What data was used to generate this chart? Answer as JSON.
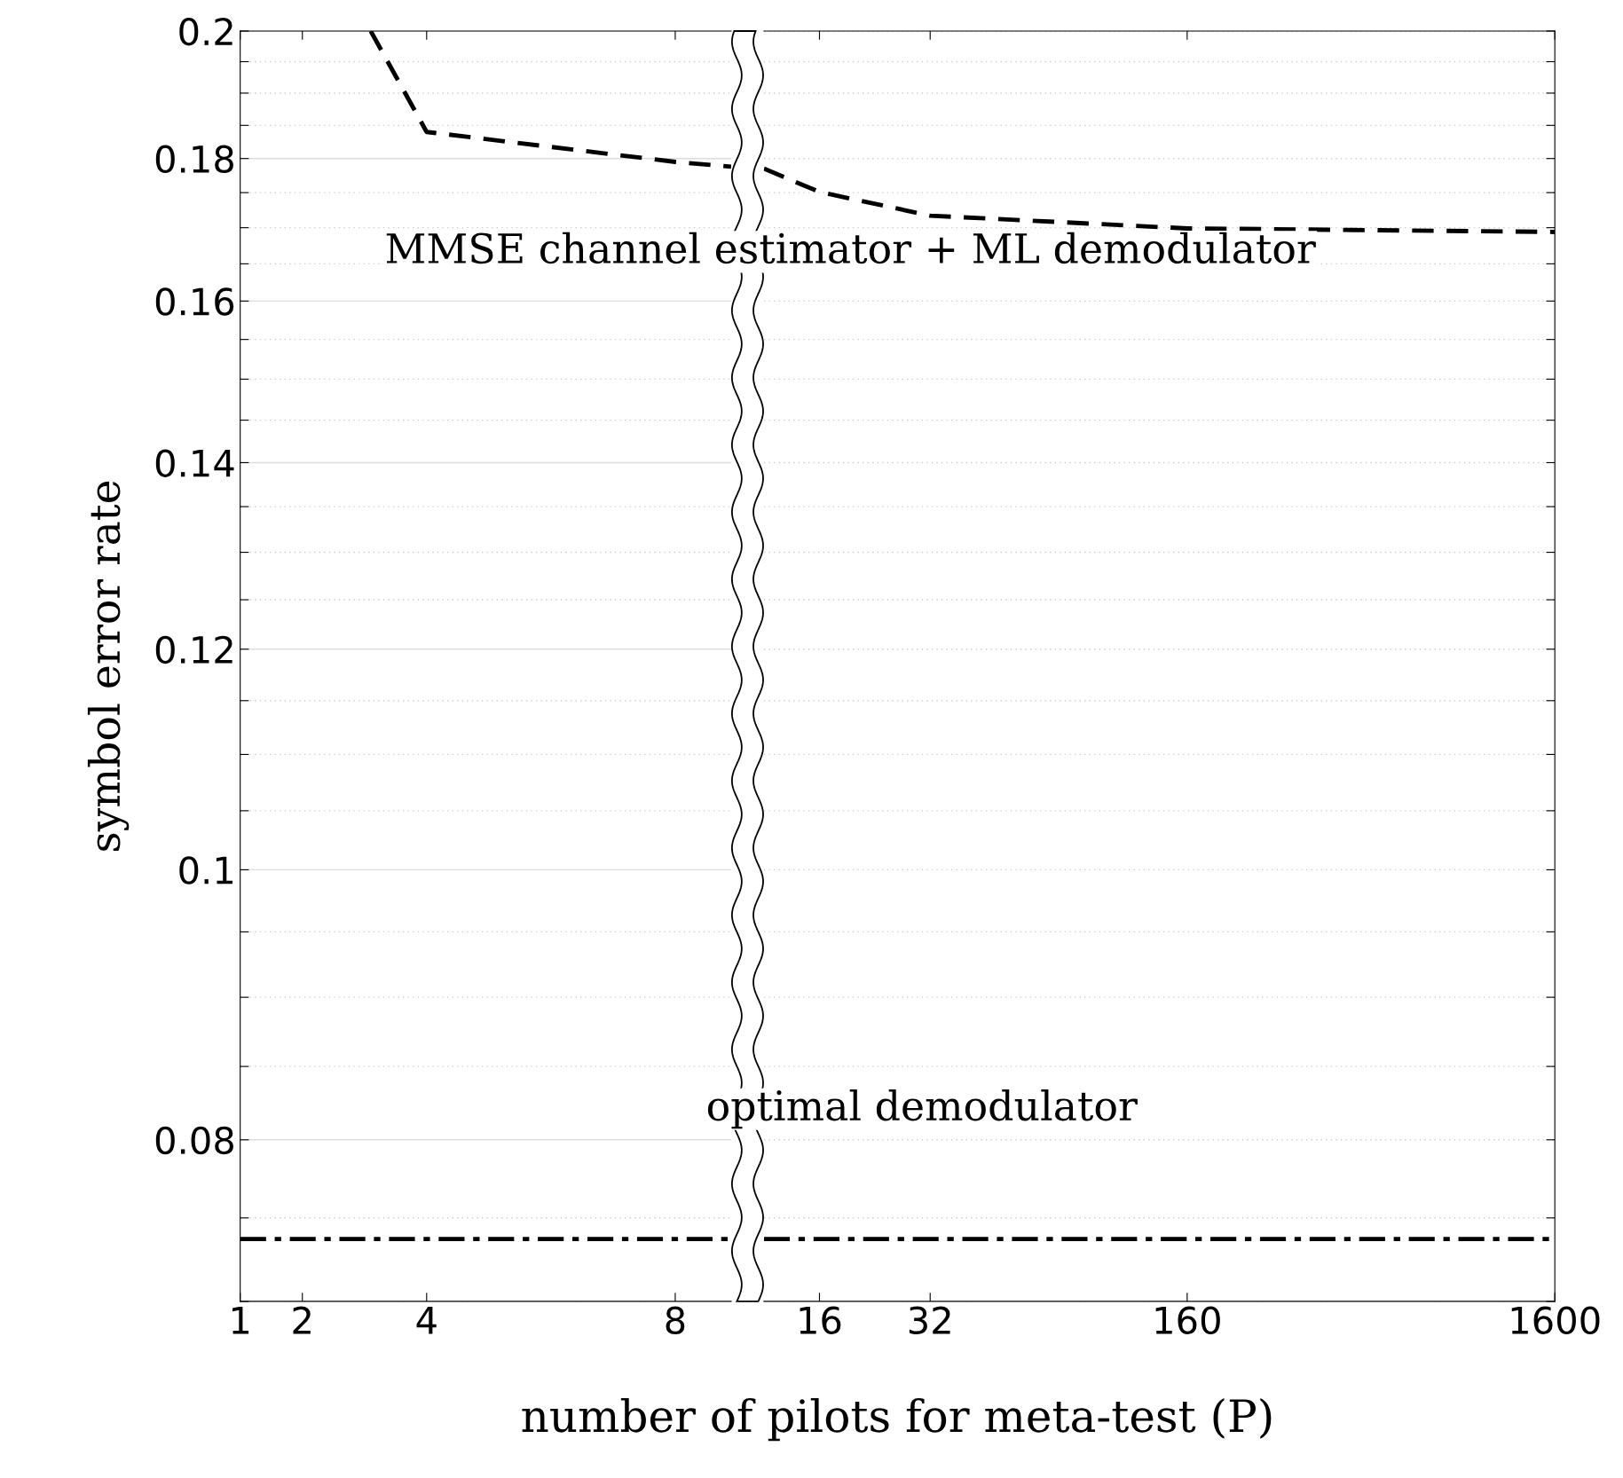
{
  "chart_data": [
    {
      "type": "line",
      "xlabel": "number of pilots for meta-test (P)",
      "ylabel": "symbol error rate",
      "xlim": [
        1,
        8.9
      ],
      "xticks": [
        1,
        2,
        4,
        8
      ],
      "ylim": [
        0.07,
        0.2
      ],
      "yticks": [
        {
          "value": 0.07,
          "label": null
        },
        {
          "value": 0.075,
          "label": null
        },
        0.08,
        {
          "value": 0.085,
          "label": null
        },
        {
          "value": 0.09,
          "label": null
        },
        {
          "value": 0.095,
          "label": null
        },
        0.1,
        {
          "value": 0.105,
          "label": null
        },
        {
          "value": 0.11,
          "label": null
        },
        {
          "value": 0.115,
          "label": null
        },
        0.12,
        {
          "value": 0.125,
          "label": null
        },
        {
          "value": 0.13,
          "label": null
        },
        {
          "value": 0.135,
          "label": null
        },
        0.14,
        {
          "value": 0.145,
          "label": null
        },
        {
          "value": 0.15,
          "label": null
        },
        {
          "value": 0.155,
          "label": null
        },
        0.16,
        {
          "value": 0.165,
          "label": null
        },
        {
          "value": 0.17,
          "label": null
        },
        {
          "value": 0.175,
          "label": null
        },
        0.18,
        {
          "value": 0.185,
          "label": null
        },
        {
          "value": 0.19,
          "label": null
        },
        {
          "value": 0.195,
          "label": null
        },
        0.2
      ],
      "log": "y",
      "grid": "y",
      "marker": "none",
      "series": [
        {
          "color": "#000000",
          "line_style": "dashed",
          "x": [
            3.1,
            4,
            8,
            8.9
          ],
          "values": [
            0.2,
            0.184,
            0.1795,
            0.1788
          ]
        },
        {
          "color": "#000000",
          "line_style": "dashdot",
          "x": [
            1,
            8.9
          ],
          "values": [
            0.0737,
            0.0737
          ]
        }
      ],
      "annotations": [
        "MMSE channel estimator + ML demodulator",
        "optimal demodulator"
      ]
    },
    {
      "type": "line",
      "xlim": [
        11.3,
        1600
      ],
      "xticks": [
        16,
        32,
        160,
        1600
      ],
      "ylim": [
        0.07,
        0.2
      ],
      "log": "xy",
      "grid": "y",
      "marker": "none",
      "tick_labels": "x",
      "yticks": [
        {
          "value": 0.07,
          "label": null
        },
        {
          "value": 0.075,
          "label": null
        },
        {
          "value": 0.08,
          "label": null
        },
        {
          "value": 0.085,
          "label": null
        },
        {
          "value": 0.09,
          "label": null
        },
        {
          "value": 0.095,
          "label": null
        },
        {
          "value": 0.1,
          "label": null
        },
        {
          "value": 0.105,
          "label": null
        },
        {
          "value": 0.11,
          "label": null
        },
        {
          "value": 0.115,
          "label": null
        },
        {
          "value": 0.12,
          "label": null
        },
        {
          "value": 0.125,
          "label": null
        },
        {
          "value": 0.13,
          "label": null
        },
        {
          "value": 0.135,
          "label": null
        },
        {
          "value": 0.14,
          "label": null
        },
        {
          "value": 0.145,
          "label": null
        },
        {
          "value": 0.15,
          "label": null
        },
        {
          "value": 0.155,
          "label": null
        },
        {
          "value": 0.16,
          "label": null
        },
        {
          "value": 0.165,
          "label": null
        },
        {
          "value": 0.17,
          "label": null
        },
        {
          "value": 0.175,
          "label": null
        },
        {
          "value": 0.18,
          "label": null
        },
        {
          "value": 0.185,
          "label": null
        },
        {
          "value": 0.19,
          "label": null
        },
        {
          "value": 0.195,
          "label": null
        },
        {
          "value": 0.2,
          "label": null
        }
      ],
      "series": [
        {
          "color": "#000000",
          "line_style": "dashed",
          "x": [
            11.3,
            16,
            32,
            160,
            1600
          ],
          "values": [
            0.1785,
            0.1751,
            0.1717,
            0.1699,
            0.1694
          ]
        },
        {
          "color": "#000000",
          "line_style": "dashdot",
          "x": [
            11.3,
            1600
          ],
          "values": [
            0.0737,
            0.0737
          ]
        }
      ]
    }
  ]
}
